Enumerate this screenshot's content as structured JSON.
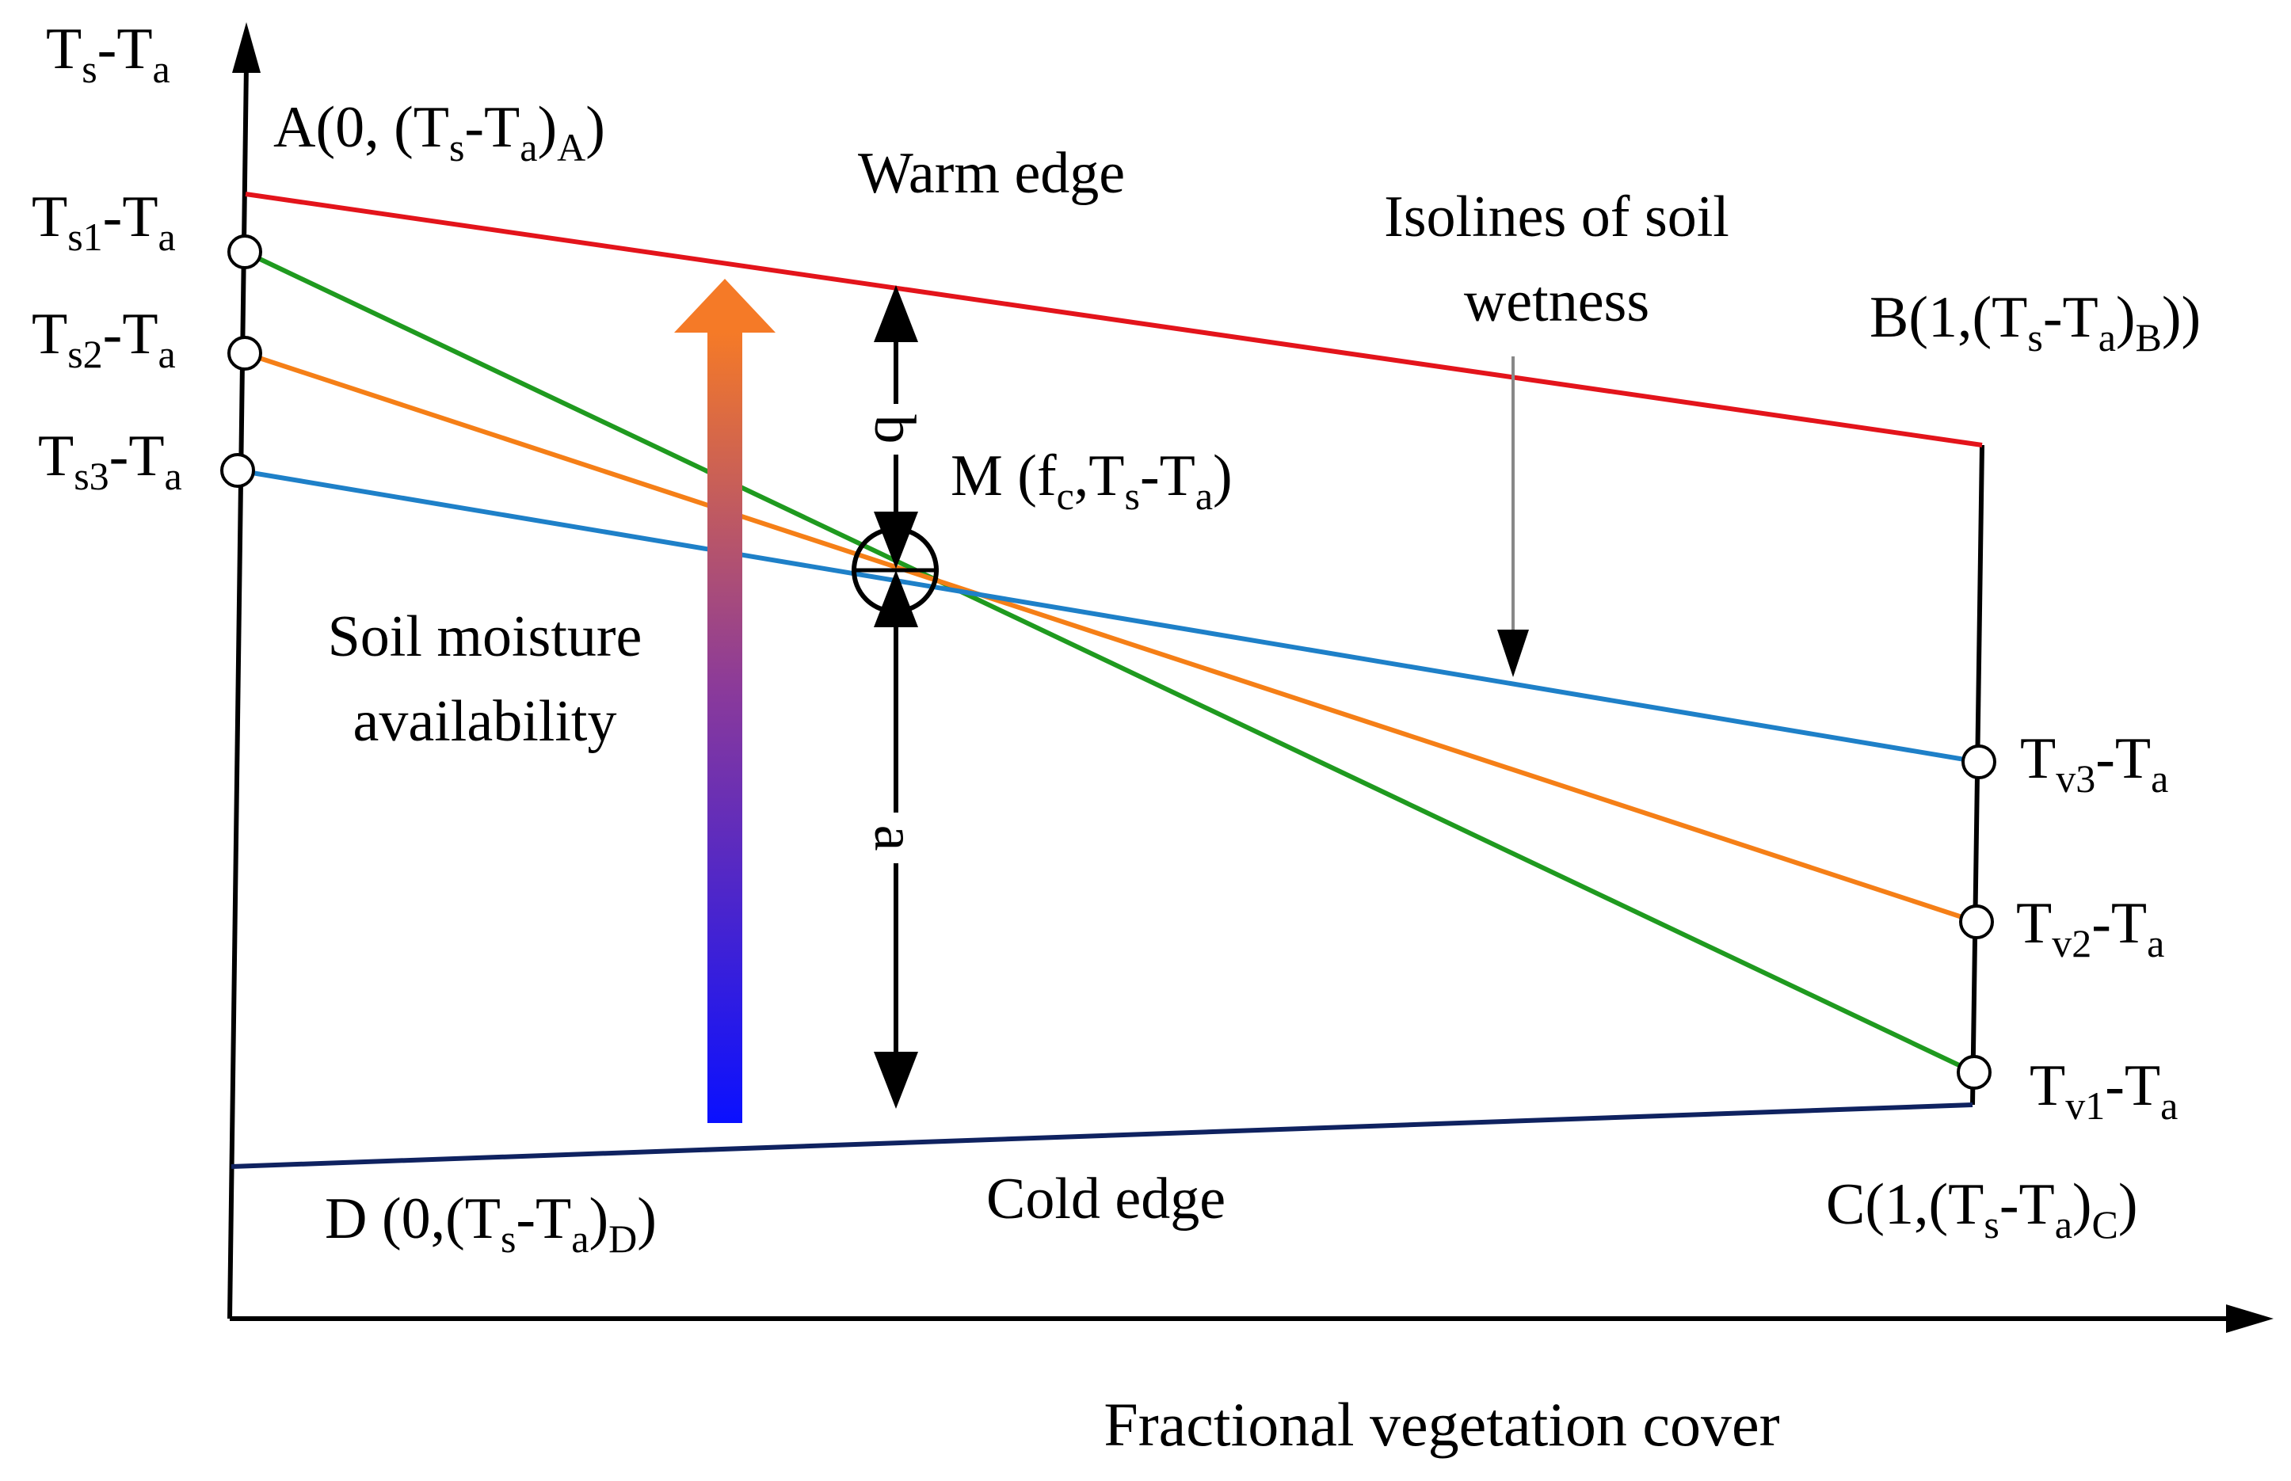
{
  "colors": {
    "warm_edge": "#e3141b",
    "cold_edge": "#0f2260",
    "isoline_1": "#1f9a1f",
    "isoline_2": "#f57f17",
    "isoline_3": "#1e80c8",
    "axis": "#000000",
    "gradient_top": "#f57a27",
    "gradient_bottom": "#0a10ff"
  },
  "axes": {
    "y_title": {
      "main": "T",
      "s": "s",
      "mid": "-T",
      "a": "a"
    },
    "x_title": "Fractional vegetation cover"
  },
  "corners": {
    "A": {
      "pre": "A(0, (T",
      "s": "s",
      "mid": "-T",
      "a": "a",
      "post": ")",
      "sub2": "A",
      "close": ")"
    },
    "B": {
      "pre": "B(1,(T",
      "s": "s",
      "mid": "-T",
      "a": "a",
      "post": ")",
      "sub2": "B",
      "close": "))"
    },
    "C": {
      "pre": "C(1,(T",
      "s": "s",
      "mid": "-T",
      "a": "a",
      "post": ")",
      "sub2": "C",
      "close": ")"
    },
    "D": {
      "pre": "D (0,(T",
      "s": "s",
      "mid": "-T",
      "a": "a",
      "post": ")",
      "sub2": "D",
      "close": ")"
    }
  },
  "edges": {
    "warm": "Warm edge",
    "cold": "Cold edge"
  },
  "isolines_note": {
    "line1": "Isolines of soil",
    "line2": "wetness"
  },
  "moisture": {
    "line1": "Soil moisture",
    "line2": "availability"
  },
  "point_M": {
    "pre": "M (f",
    "c": "c",
    "mid": ",T",
    "s": "s",
    "mid2": "-T",
    "a": "a",
    "post": ")"
  },
  "distances": {
    "a": "a",
    "b": "b"
  },
  "left_labels": [
    {
      "main": "T",
      "sub": "s1",
      "mid": "-T",
      "a": "a"
    },
    {
      "main": "T",
      "sub": "s2",
      "mid": "-T",
      "a": "a"
    },
    {
      "main": "T",
      "sub": "s3",
      "mid": "-T",
      "a": "a"
    }
  ],
  "right_labels": [
    {
      "main": "T",
      "sub": "v3",
      "mid": "-T",
      "a": "a"
    },
    {
      "main": "T",
      "sub": "v2",
      "mid": "-T",
      "a": "a"
    },
    {
      "main": "T",
      "sub": "v1",
      "mid": "-T",
      "a": "a"
    }
  ]
}
